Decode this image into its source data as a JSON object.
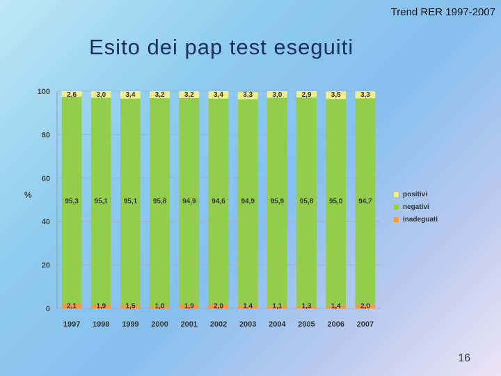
{
  "header": {
    "subtitle": "Trend RER 1997-2007",
    "title": "Esito dei pap test eseguiti"
  },
  "page_number": "16",
  "colors": {
    "positivi": "#f2ee8e",
    "negativi": "#92cd4c",
    "inadeguati": "#f29a4a"
  },
  "chart_data": {
    "type": "bar",
    "stacked": true,
    "ylabel": "%",
    "ylim": [
      0,
      100
    ],
    "yticks": [
      0,
      20,
      40,
      60,
      80,
      100
    ],
    "categories": [
      "1997",
      "1998",
      "1999",
      "2000",
      "2001",
      "2002",
      "2003",
      "2004",
      "2005",
      "2006",
      "2007"
    ],
    "series": [
      {
        "name": "inadeguati",
        "values": [
          2.1,
          1.9,
          1.5,
          1.0,
          1.9,
          2.0,
          1.4,
          1.1,
          1.3,
          1.4,
          2.0
        ],
        "labels": [
          "2,1",
          "1,9",
          "1,5",
          "1,0",
          "1,9",
          "2,0",
          "1,4",
          "1,1",
          "1,3",
          "1,4",
          "2,0"
        ]
      },
      {
        "name": "negativi",
        "values": [
          95.3,
          95.1,
          95.1,
          95.8,
          94.9,
          94.6,
          94.9,
          95.9,
          95.8,
          95.0,
          94.7
        ],
        "labels": [
          "95,3",
          "95,1",
          "95,1",
          "95,8",
          "94,9",
          "94,6",
          "94,9",
          "95,9",
          "95,8",
          "95,0",
          "94,7"
        ]
      },
      {
        "name": "positivi",
        "values": [
          2.6,
          3.0,
          3.4,
          3.2,
          3.2,
          3.4,
          3.3,
          3.0,
          2.9,
          3.5,
          3.3
        ],
        "labels": [
          "2,6",
          "3,0",
          "3,4",
          "3,2",
          "3,2",
          "3,4",
          "3,3",
          "3,0",
          "2,9",
          "3,5",
          "3,3"
        ]
      }
    ],
    "legend": {
      "position": "right",
      "items": [
        {
          "key": "positivi",
          "label": "positivi"
        },
        {
          "key": "negativi",
          "label": "negativi"
        },
        {
          "key": "inadeguati",
          "label": "inadeguati"
        }
      ]
    }
  }
}
